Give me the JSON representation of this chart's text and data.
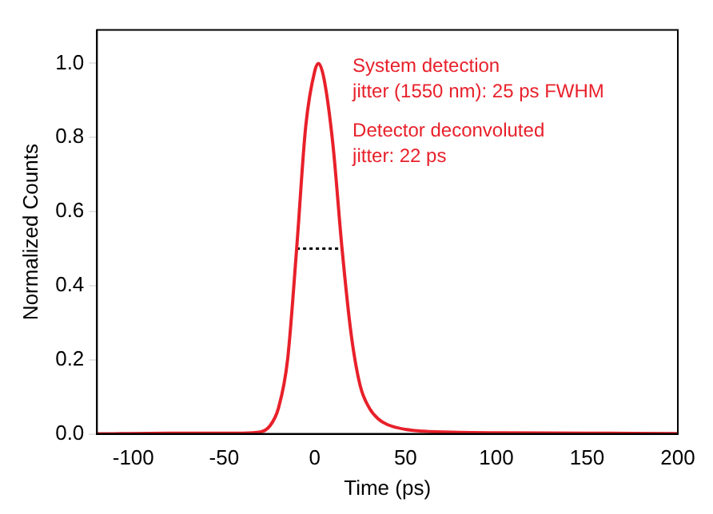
{
  "chart_data": {
    "type": "line",
    "xlabel": "Time (ps)",
    "ylabel": "Normalized Counts",
    "xlim": [
      -120,
      200
    ],
    "xticks": [
      -100,
      -50,
      0,
      50,
      100,
      150,
      200
    ],
    "ylim": [
      0,
      1.09
    ],
    "yticks": [
      {
        "value": 0,
        "label": "0.0"
      },
      {
        "value": 0.2,
        "label": "0.2"
      },
      {
        "value": 0.4,
        "label": "0.4"
      },
      {
        "value": 0.6,
        "label": "0.6"
      },
      {
        "value": 0.8,
        "label": "0.8"
      },
      {
        "value": 1,
        "label": "1.0"
      }
    ],
    "grid": false,
    "legend": false,
    "marker": "none",
    "series": [
      {
        "color": "#e8202a",
        "line_style": "solid",
        "x": [
          -120,
          -80,
          -40,
          -30,
          -25,
          -20,
          -15,
          -10,
          -5,
          0,
          2,
          5,
          10,
          15,
          20,
          25,
          30,
          35,
          40,
          50,
          60,
          80,
          100,
          150,
          200
        ],
        "values": [
          0,
          0.002,
          0.002,
          0.005,
          0.02,
          0.07,
          0.2,
          0.5,
          0.83,
          0.98,
          1.0,
          0.96,
          0.78,
          0.5,
          0.27,
          0.13,
          0.07,
          0.04,
          0.025,
          0.012,
          0.007,
          0.004,
          0.003,
          0.002,
          0.001
        ]
      },
      {
        "color": "#000000",
        "line_style": "dotted",
        "x": [
          -10,
          15
        ],
        "values": [
          0.5,
          0.5
        ]
      }
    ],
    "annotations": [
      "System detection\njitter (1550 nm): 25 ps FWHM",
      "Detector deconvoluted\njitter: 22 ps"
    ]
  }
}
